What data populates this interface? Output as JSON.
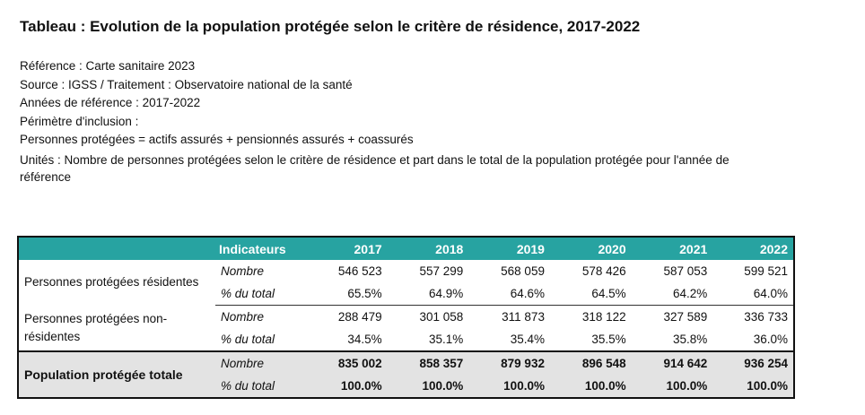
{
  "title": "Tableau : Evolution de la population protégée selon le critère de résidence, 2017-2022",
  "meta": {
    "reference": "Référence : Carte sanitaire 2023",
    "source": "Source : IGSS / Traitement : Observatoire national de la santé",
    "years": "Années de référence : 2017-2022",
    "perimeter": "Périmètre d'inclusion :",
    "definition": "Personnes protégées = actifs assurés + pensionnés assurés + coassurés",
    "units": "Unités : Nombre de personnes protégées selon le critère de résidence et part dans le total de la population protégée pour l'année de référence"
  },
  "table": {
    "header": {
      "indicator": "Indicateurs",
      "years": [
        "2017",
        "2018",
        "2019",
        "2020",
        "2021",
        "2022"
      ]
    },
    "groups": [
      {
        "name": "Personnes protégées résidentes",
        "rows": [
          {
            "label": "Nombre",
            "values": [
              "546 523",
              "557 299",
              "568 059",
              "578 426",
              "587 053",
              "599 521"
            ]
          },
          {
            "label": "% du total",
            "values": [
              "65.5%",
              "64.9%",
              "64.6%",
              "64.5%",
              "64.2%",
              "64.0%"
            ]
          }
        ]
      },
      {
        "name": "Personnes protégées non-résidentes",
        "rows": [
          {
            "label": "Nombre",
            "values": [
              "288 479",
              "301 058",
              "311 873",
              "318 122",
              "327 589",
              "336 733"
            ]
          },
          {
            "label": "% du total",
            "values": [
              "34.5%",
              "35.1%",
              "35.4%",
              "35.5%",
              "35.8%",
              "36.0%"
            ]
          }
        ]
      },
      {
        "name": "Population protégée totale",
        "rows": [
          {
            "label": "Nombre",
            "values": [
              "835 002",
              "858 357",
              "879 932",
              "896 548",
              "914 642",
              "936 254"
            ]
          },
          {
            "label": "% du total",
            "values": [
              "100.0%",
              "100.0%",
              "100.0%",
              "100.0%",
              "100.0%",
              "100.0%"
            ]
          }
        ]
      }
    ]
  },
  "colors": {
    "header_bg": "#27a3a1",
    "total_bg": "#e3e3e3"
  }
}
